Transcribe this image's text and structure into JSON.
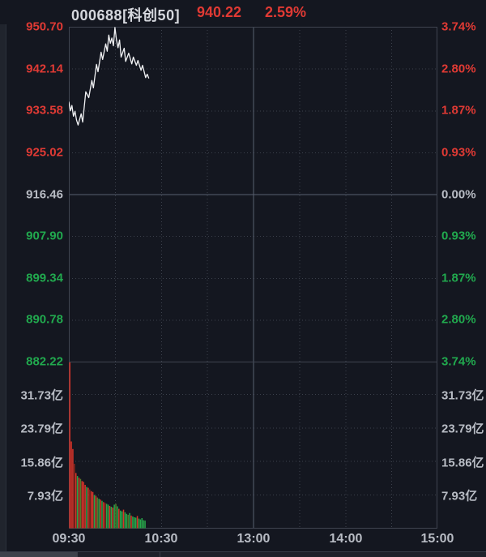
{
  "header": {
    "symbol": "000688[科创50]",
    "price": "940.22",
    "change_pct": "2.59%"
  },
  "colors": {
    "background": "#141720",
    "header_text": "#d6d8de",
    "up_red": "#e03a34",
    "down_green": "#21a94e",
    "neutral_gray": "#b8bcc4",
    "price_line": "#f2f3f5",
    "grid_dotted": "#3c414c",
    "grid_solid": "#3f4450",
    "zero_line": "#596070",
    "vol_red": "#d93429",
    "vol_dark_red": "#8a251a",
    "vol_green": "#28a64a",
    "vol_dark_green": "#567a28",
    "tabbar_active": "#3e424b",
    "tabbar_bg": "#1e212a"
  },
  "axes": {
    "price_left": [
      {
        "label": "950.70",
        "trend": "up"
      },
      {
        "label": "942.14",
        "trend": "up"
      },
      {
        "label": "933.58",
        "trend": "up"
      },
      {
        "label": "925.02",
        "trend": "up"
      },
      {
        "label": "916.46",
        "trend": "flat"
      },
      {
        "label": "907.90",
        "trend": "down"
      },
      {
        "label": "899.34",
        "trend": "down"
      },
      {
        "label": "890.78",
        "trend": "down"
      },
      {
        "label": "882.22",
        "trend": "down"
      }
    ],
    "pct_right": [
      {
        "label": "3.74%",
        "trend": "up"
      },
      {
        "label": "2.80%",
        "trend": "up"
      },
      {
        "label": "1.87%",
        "trend": "up"
      },
      {
        "label": "0.93%",
        "trend": "up"
      },
      {
        "label": "0.00%",
        "trend": "flat"
      },
      {
        "label": "0.93%",
        "trend": "down"
      },
      {
        "label": "1.87%",
        "trend": "down"
      },
      {
        "label": "2.80%",
        "trend": "down"
      },
      {
        "label": "3.74%",
        "trend": "down"
      }
    ],
    "volume": [
      "31.73亿",
      "23.79亿",
      "15.86亿",
      "7.93亿"
    ],
    "time": [
      "09:30",
      "10:30",
      "13:00",
      "14:00",
      "15:00"
    ]
  },
  "chart_data": {
    "type": "line",
    "title": "000688 科创50 intraday (分时) price line with volume bars",
    "x_axis": {
      "ticks": [
        "09:30",
        "10:30",
        "13:00",
        "14:00",
        "15:00"
      ],
      "total_minutes": 240,
      "session_break_tick": "13:00"
    },
    "price_axis": {
      "max": 950.7,
      "min": 882.22,
      "prev_close": 916.46,
      "tick_step": 8.56
    },
    "pct_axis": {
      "max_pct": 3.74,
      "min_pct": -3.74,
      "tick_step_pct": 0.93
    },
    "volume_axis": {
      "unit": "亿",
      "ticks": [
        31.73,
        23.79,
        15.86,
        7.93
      ],
      "pane_max": 39.65
    },
    "last": {
      "price": 940.22,
      "change_pct": 2.59
    },
    "price_points": [
      [
        0,
        935.3
      ],
      [
        1,
        933.5
      ],
      [
        2,
        934.6
      ],
      [
        3,
        932.4
      ],
      [
        4,
        933.4
      ],
      [
        5,
        931.6
      ],
      [
        6,
        930.6
      ],
      [
        8,
        932.9
      ],
      [
        9,
        931.2
      ],
      [
        11,
        937.4
      ],
      [
        13,
        936.2
      ],
      [
        15,
        939.7
      ],
      [
        16,
        938.2
      ],
      [
        18,
        943.0
      ],
      [
        19,
        941.5
      ],
      [
        21,
        945.5
      ],
      [
        22,
        944.0
      ],
      [
        24,
        947.2
      ],
      [
        25,
        945.7
      ],
      [
        26,
        949.0
      ],
      [
        27,
        947.3
      ],
      [
        28,
        948.4
      ],
      [
        29,
        946.8
      ],
      [
        30,
        950.55
      ],
      [
        31,
        948.0
      ],
      [
        32,
        946.4
      ],
      [
        33,
        948.0
      ],
      [
        34,
        944.5
      ],
      [
        36,
        946.3
      ],
      [
        37,
        943.6
      ],
      [
        39,
        945.3
      ],
      [
        41,
        943.1
      ],
      [
        42,
        944.5
      ],
      [
        44,
        942.8
      ],
      [
        45,
        943.8
      ],
      [
        47,
        941.8
      ],
      [
        48,
        942.8
      ],
      [
        50,
        940.3
      ],
      [
        51,
        941.0
      ],
      [
        52,
        940.22
      ]
    ],
    "volume_bars": [
      [
        39.6,
        "r"
      ],
      [
        20.6,
        "r"
      ],
      [
        18.8,
        "r"
      ],
      [
        15.3,
        "R"
      ],
      [
        13.1,
        "r"
      ],
      [
        12.4,
        "g"
      ],
      [
        12.0,
        "r"
      ],
      [
        11.7,
        "G"
      ],
      [
        11.2,
        "r"
      ],
      [
        11.0,
        "r"
      ],
      [
        10.3,
        "r"
      ],
      [
        9.8,
        "g"
      ],
      [
        9.6,
        "r"
      ],
      [
        9.2,
        "R"
      ],
      [
        8.8,
        "r"
      ],
      [
        8.6,
        "r"
      ],
      [
        7.9,
        "g"
      ],
      [
        7.7,
        "r"
      ],
      [
        7.3,
        "G"
      ],
      [
        7.0,
        "g"
      ],
      [
        6.8,
        "r"
      ],
      [
        6.5,
        "g"
      ],
      [
        6.2,
        "r"
      ],
      [
        6.0,
        "R"
      ],
      [
        5.8,
        "g"
      ],
      [
        5.6,
        "g"
      ],
      [
        5.3,
        "r"
      ],
      [
        5.1,
        "g"
      ],
      [
        4.9,
        "r"
      ],
      [
        5.6,
        "g"
      ],
      [
        5.8,
        "G"
      ],
      [
        5.2,
        "g"
      ],
      [
        4.6,
        "r"
      ],
      [
        4.2,
        "g"
      ],
      [
        4.0,
        "g"
      ],
      [
        4.4,
        "r"
      ],
      [
        3.8,
        "g"
      ],
      [
        3.4,
        "g"
      ],
      [
        3.2,
        "G"
      ],
      [
        3.6,
        "g"
      ],
      [
        3.0,
        "r"
      ],
      [
        2.8,
        "g"
      ],
      [
        2.6,
        "g"
      ],
      [
        2.5,
        "g"
      ],
      [
        2.9,
        "r"
      ],
      [
        2.3,
        "g"
      ],
      [
        2.1,
        "g"
      ],
      [
        2.4,
        "g"
      ],
      [
        1.9,
        "g"
      ],
      [
        1.8,
        "g"
      ]
    ],
    "legend": "none",
    "grid": "dotted 30-min verticals and tick-level horizontals; solid zero line at prev close"
  }
}
